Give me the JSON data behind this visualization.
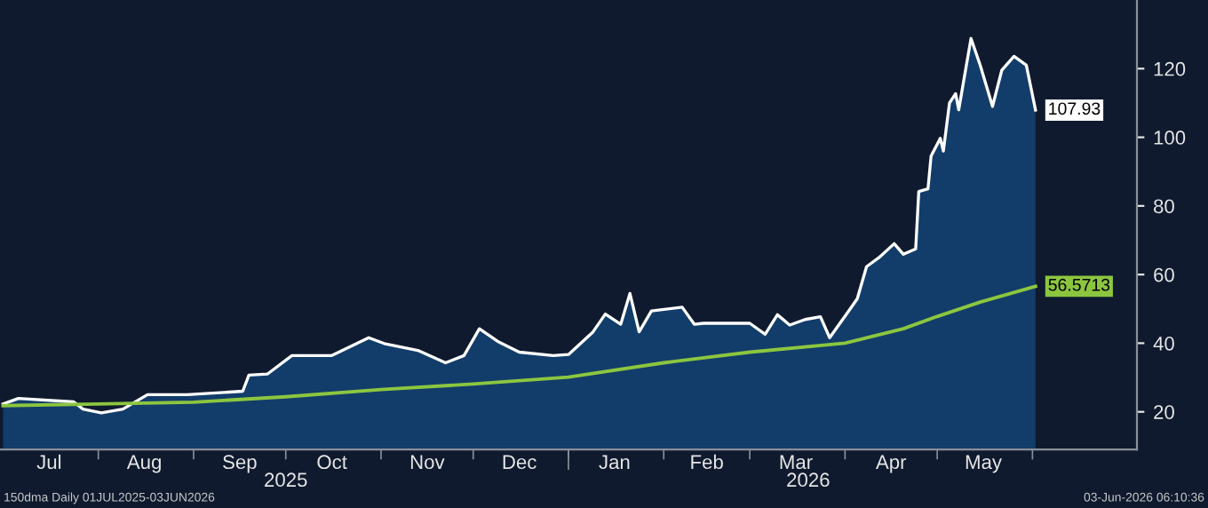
{
  "chart_data": {
    "type": "area",
    "series": [
      {
        "color": "#123d6a",
        "x": [
          "2025-07-01",
          "2025-07-06",
          "2025-07-24",
          "2025-07-27",
          "2025-08-02",
          "2025-08-09",
          "2025-08-17",
          "2025-08-30",
          "2025-09-17",
          "2025-09-19",
          "2025-09-25",
          "2025-10-03",
          "2025-10-16",
          "2025-10-28",
          "2025-11-02",
          "2025-11-13",
          "2025-11-22",
          "2025-11-28",
          "2025-12-03",
          "2025-12-09",
          "2025-12-16",
          "2025-12-27",
          "2026-01-01",
          "2026-01-05",
          "2026-01-09",
          "2026-01-13",
          "2026-01-18",
          "2026-01-21",
          "2026-01-24",
          "2026-01-28",
          "2026-02-07",
          "2026-02-11",
          "2026-02-14",
          "2026-02-24",
          "2026-03-01",
          "2026-03-06",
          "2026-03-10",
          "2026-03-14",
          "2026-03-19",
          "2026-03-24",
          "2026-03-27",
          "2026-04-03",
          "2026-04-05",
          "2026-04-08",
          "2026-04-12",
          "2026-04-17",
          "2026-04-20",
          "2026-04-24",
          "2026-04-25",
          "2026-04-28",
          "2026-04-29",
          "2026-05-02",
          "2026-05-03",
          "2026-05-05",
          "2026-05-07",
          "2026-05-08",
          "2026-05-12",
          "2026-05-15",
          "2026-05-19",
          "2026-05-22",
          "2026-05-26",
          "2026-05-30",
          "2026-06-02"
        ],
        "values": [
          22.3,
          23.9,
          22.9,
          20.8,
          19.7,
          20.8,
          25,
          25,
          26,
          30.7,
          31,
          36.4,
          36.4,
          41.6,
          39.9,
          37.9,
          34.3,
          36.4,
          44.2,
          40.5,
          37.4,
          36.4,
          36.7,
          40,
          43.3,
          48.5,
          45.5,
          54.5,
          43.3,
          49.4,
          50.5,
          45.5,
          45.8,
          45.8,
          45.8,
          42.6,
          48.3,
          45.3,
          46.9,
          47.7,
          41.6,
          50.4,
          53,
          62.3,
          64.9,
          69,
          65.9,
          67.5,
          84.2,
          85,
          94.5,
          99.7,
          96,
          110,
          112.7,
          108,
          128.8,
          121,
          109,
          119.5,
          123.6,
          121,
          107.93
        ],
        "value_labels": [
          null,
          null,
          null,
          null,
          null,
          null,
          null,
          null,
          null,
          null,
          null,
          null,
          null,
          null,
          null,
          null,
          null,
          null,
          null,
          null,
          null,
          null,
          null,
          null,
          null,
          null,
          null,
          null,
          null,
          null,
          null,
          null,
          null,
          null,
          null,
          null,
          null,
          null,
          null,
          null,
          null,
          null,
          null,
          null,
          null,
          null,
          null,
          null,
          null,
          null,
          null,
          null,
          null,
          null,
          null,
          null,
          null,
          null,
          null,
          null,
          null,
          null,
          "107.93"
        ]
      },
      {
        "type": "line",
        "color": "#8cc63f",
        "x": [
          "2025-07-01",
          "2025-08-01",
          "2025-09-01",
          "2025-10-01",
          "2025-11-01",
          "2025-12-01",
          "2026-01-01",
          "2026-02-01",
          "2026-03-01",
          "2026-04-01",
          "2026-04-20",
          "2026-05-01",
          "2026-05-15",
          "2026-06-02"
        ],
        "values": [
          21.8,
          22.3,
          22.8,
          24.4,
          26.5,
          28.1,
          30.1,
          34.3,
          37.4,
          40,
          44.2,
          47.8,
          52,
          56.5713
        ],
        "value_labels": [
          null,
          null,
          null,
          null,
          null,
          null,
          null,
          null,
          null,
          null,
          null,
          null,
          null,
          "56.5713"
        ]
      }
    ],
    "xlim": [
      "2025-06-30",
      "2026-07-05"
    ],
    "x2lim": [
      "2025-06-30",
      "2026-07-05"
    ],
    "xticks": [
      {
        "value": "2025-07-16",
        "label": "Jul"
      },
      {
        "value": "2025-08-01",
        "label": null
      },
      {
        "value": "2025-08-16",
        "label": "Aug"
      },
      {
        "value": "2025-09-01",
        "label": null
      },
      {
        "value": "2025-09-16",
        "label": "Sep"
      },
      {
        "value": "2025-10-01",
        "label": null
      },
      {
        "value": "2025-10-16",
        "label": "Oct"
      },
      {
        "value": "2025-11-01",
        "label": null
      },
      {
        "value": "2025-11-16",
        "label": "Nov"
      },
      {
        "value": "2025-12-01",
        "label": null
      },
      {
        "value": "2025-12-16",
        "label": "Dec"
      },
      {
        "value": "2026-01-01",
        "label": null
      },
      {
        "value": "2026-01-16",
        "label": "Jan"
      },
      {
        "value": "2026-02-01",
        "label": null
      },
      {
        "value": "2026-02-15",
        "label": "Feb"
      },
      {
        "value": "2026-03-01",
        "label": null
      },
      {
        "value": "2026-03-16",
        "label": "Mar"
      },
      {
        "value": "2026-04-01",
        "label": null
      },
      {
        "value": "2026-04-16",
        "label": "Apr"
      },
      {
        "value": "2026-05-01",
        "label": null
      },
      {
        "value": "2026-05-16",
        "label": "May"
      },
      {
        "value": "2026-06-01",
        "label": null
      }
    ],
    "x2ticks": [
      {
        "value": "2025-10-01",
        "label": "2025"
      },
      {
        "value": "2026-01-01",
        "label": null
      },
      {
        "value": "2026-03-20",
        "label": "2026"
      }
    ],
    "ylim": [
      9,
      140
    ],
    "yticks": [
      20,
      40,
      60,
      80,
      100,
      120
    ],
    "grid": false,
    "legend": false,
    "annotations": [
      "150dma Daily 01JUL2025-03JUN2026",
      "03-Jun-2026 06:10:36"
    ]
  }
}
